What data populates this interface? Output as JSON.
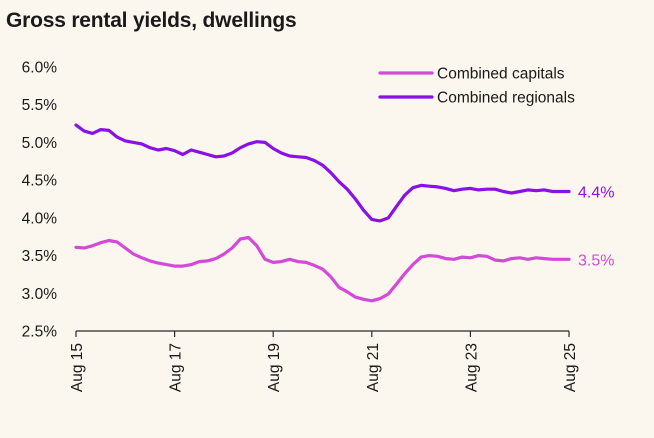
{
  "title": "Gross rental yields, dwellings",
  "chart_data": {
    "type": "line",
    "title": "Gross rental yields, dwellings",
    "xlabel": "",
    "ylabel": "",
    "ylim": [
      2.5,
      6.0
    ],
    "yticks": [
      "2.5%",
      "3.0%",
      "3.5%",
      "4.0%",
      "4.5%",
      "5.0%",
      "5.5%",
      "6.0%"
    ],
    "ytick_values": [
      2.5,
      3.0,
      3.5,
      4.0,
      4.5,
      5.0,
      5.5,
      6.0
    ],
    "xlim": [
      2015.583,
      2025.583
    ],
    "xtick_labels": [
      "Aug 15",
      "Aug 17",
      "Aug 19",
      "Aug 21",
      "Aug 23",
      "Aug 25"
    ],
    "xtick_values": [
      2015.583,
      2017.583,
      2019.583,
      2021.583,
      2023.583,
      2025.583
    ],
    "legend_position": "top-right",
    "grid": false,
    "series": [
      {
        "name": "Combined capitals",
        "color": "#d44ad8",
        "end_label": "3.5%",
        "x": [
          2015.583,
          2015.75,
          2015.917,
          2016.083,
          2016.25,
          2016.417,
          2016.583,
          2016.75,
          2016.917,
          2017.083,
          2017.25,
          2017.417,
          2017.583,
          2017.75,
          2017.917,
          2018.083,
          2018.25,
          2018.417,
          2018.583,
          2018.75,
          2018.917,
          2019.083,
          2019.25,
          2019.417,
          2019.583,
          2019.75,
          2019.917,
          2020.083,
          2020.25,
          2020.417,
          2020.583,
          2020.75,
          2020.917,
          2021.083,
          2021.25,
          2021.417,
          2021.583,
          2021.75,
          2021.917,
          2022.083,
          2022.25,
          2022.417,
          2022.583,
          2022.75,
          2022.917,
          2023.083,
          2023.25,
          2023.417,
          2023.583,
          2023.75,
          2023.917,
          2024.083,
          2024.25,
          2024.417,
          2024.583,
          2024.75,
          2024.917,
          2025.083,
          2025.25,
          2025.417,
          2025.583
        ],
        "values": [
          3.61,
          3.6,
          3.63,
          3.67,
          3.7,
          3.68,
          3.6,
          3.52,
          3.47,
          3.43,
          3.4,
          3.38,
          3.36,
          3.36,
          3.38,
          3.42,
          3.43,
          3.46,
          3.52,
          3.6,
          3.72,
          3.74,
          3.63,
          3.45,
          3.41,
          3.42,
          3.45,
          3.42,
          3.41,
          3.37,
          3.32,
          3.22,
          3.08,
          3.02,
          2.95,
          2.92,
          2.9,
          2.93,
          2.99,
          3.12,
          3.26,
          3.38,
          3.48,
          3.5,
          3.49,
          3.46,
          3.45,
          3.48,
          3.47,
          3.5,
          3.49,
          3.44,
          3.43,
          3.46,
          3.47,
          3.45,
          3.47,
          3.46,
          3.45,
          3.45,
          3.45
        ]
      },
      {
        "name": "Combined regionals",
        "color": "#8a10e6",
        "end_label": "4.4%",
        "x": [
          2015.583,
          2015.75,
          2015.917,
          2016.083,
          2016.25,
          2016.417,
          2016.583,
          2016.75,
          2016.917,
          2017.083,
          2017.25,
          2017.417,
          2017.583,
          2017.75,
          2017.917,
          2018.083,
          2018.25,
          2018.417,
          2018.583,
          2018.75,
          2018.917,
          2019.083,
          2019.25,
          2019.417,
          2019.583,
          2019.75,
          2019.917,
          2020.083,
          2020.25,
          2020.417,
          2020.583,
          2020.75,
          2020.917,
          2021.083,
          2021.25,
          2021.417,
          2021.583,
          2021.75,
          2021.917,
          2022.083,
          2022.25,
          2022.417,
          2022.583,
          2022.75,
          2022.917,
          2023.083,
          2023.25,
          2023.417,
          2023.583,
          2023.75,
          2023.917,
          2024.083,
          2024.25,
          2024.417,
          2024.583,
          2024.75,
          2024.917,
          2025.083,
          2025.25,
          2025.417,
          2025.583
        ],
        "values": [
          5.23,
          5.15,
          5.12,
          5.17,
          5.16,
          5.07,
          5.02,
          5.0,
          4.98,
          4.93,
          4.9,
          4.92,
          4.89,
          4.84,
          4.9,
          4.87,
          4.84,
          4.81,
          4.82,
          4.86,
          4.93,
          4.98,
          5.01,
          5.0,
          4.92,
          4.86,
          4.82,
          4.81,
          4.8,
          4.76,
          4.7,
          4.6,
          4.48,
          4.38,
          4.25,
          4.1,
          3.98,
          3.96,
          4.0,
          4.15,
          4.3,
          4.4,
          4.43,
          4.42,
          4.41,
          4.39,
          4.36,
          4.38,
          4.39,
          4.37,
          4.38,
          4.38,
          4.35,
          4.33,
          4.35,
          4.37,
          4.36,
          4.37,
          4.35,
          4.35,
          4.35
        ]
      }
    ]
  }
}
